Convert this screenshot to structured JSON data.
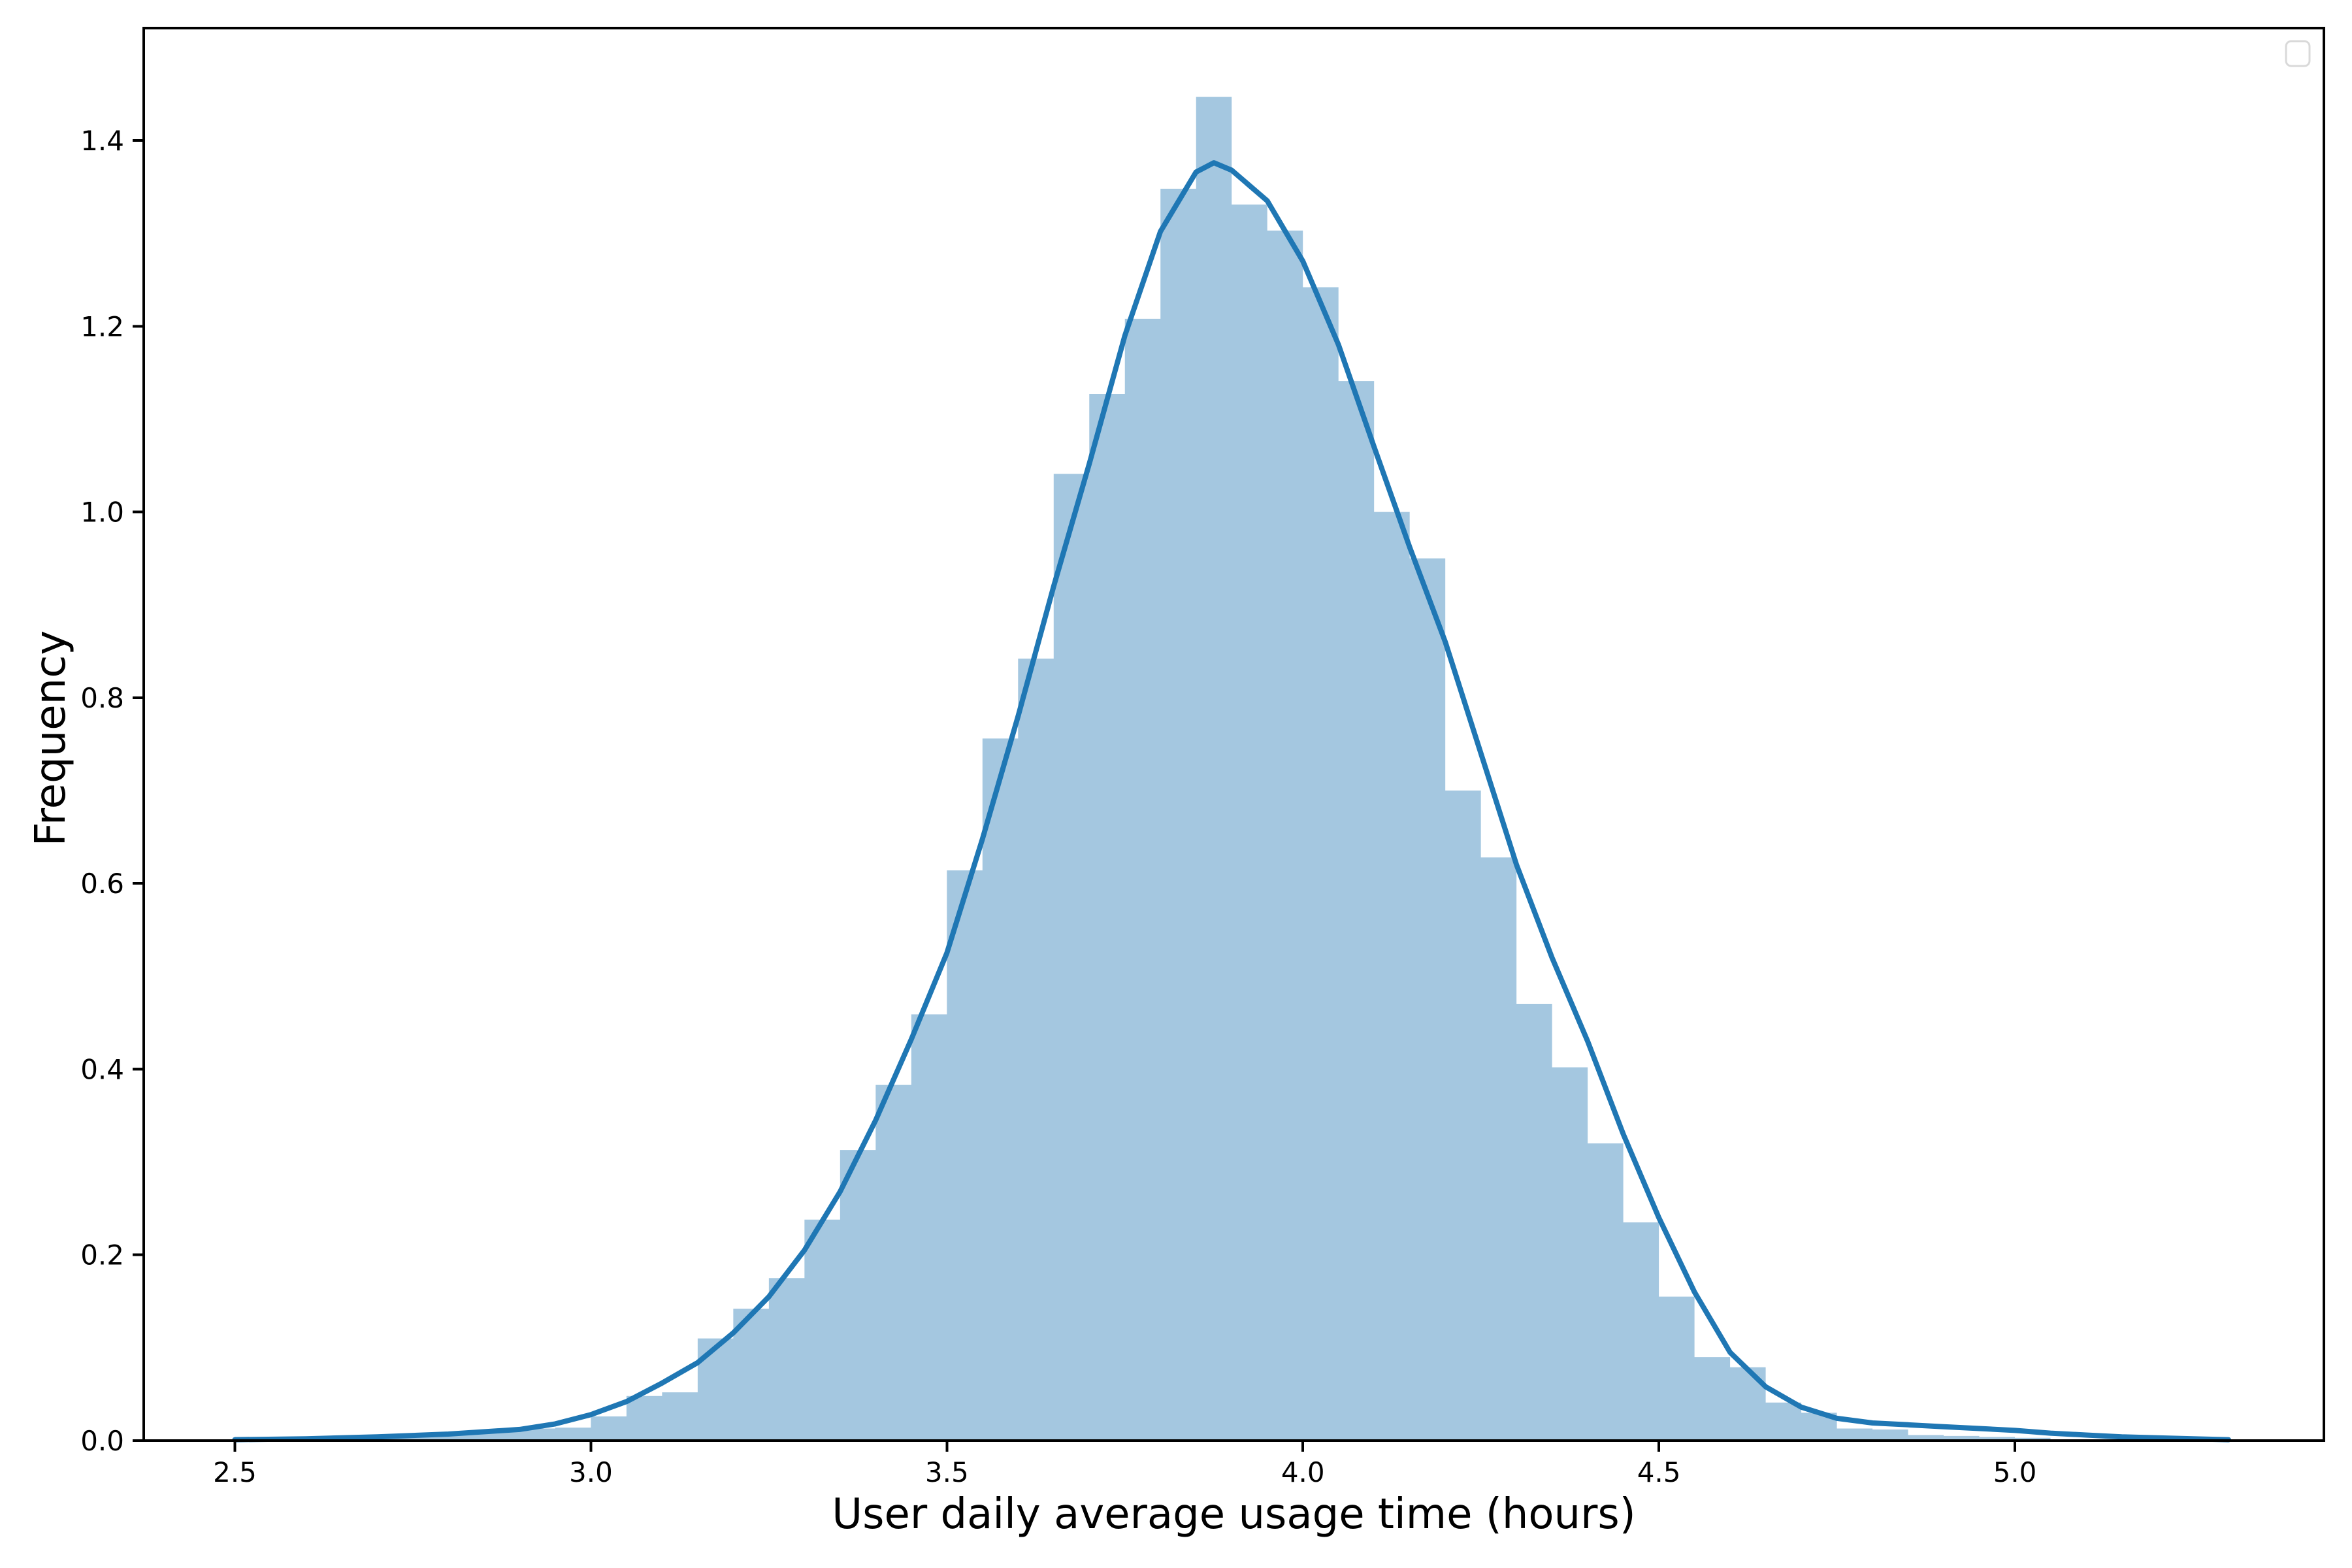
{
  "figure": {
    "background_color": "#ffffff",
    "text_color": "#000000"
  },
  "chart_data": {
    "type": "histogram",
    "subtype": "histogram_with_kde",
    "title": "",
    "xlabel": "User daily average usage time (hours)",
    "ylabel": "Frequency",
    "xlim": [
      2.372,
      5.434
    ],
    "ylim": [
      0,
      1.521
    ],
    "grid": false,
    "legend": {
      "visible": true,
      "position": "upper right",
      "entries": [],
      "border_color": "#d9d9d9",
      "fill_color": "#ffffff"
    },
    "xticks": {
      "values": [
        2.5,
        3.0,
        3.5,
        4.0,
        4.5,
        5.0
      ],
      "labels": [
        "2.5",
        "3.0",
        "3.5",
        "4.0",
        "4.5",
        "5.0"
      ]
    },
    "yticks": {
      "values": [
        0.0,
        0.2,
        0.4,
        0.6,
        0.8,
        1.0,
        1.2,
        1.4
      ],
      "labels": [
        "0.0",
        "0.2",
        "0.4",
        "0.6",
        "0.8",
        "1.0",
        "1.2",
        "1.4"
      ]
    },
    "histogram": {
      "fill_color": "#a4c7e0",
      "bin_start": 2.5,
      "bin_width": 0.05,
      "heights": [
        0.004,
        0.0,
        0.004,
        0.004,
        0.006,
        0.006,
        0.009,
        0.012,
        0.013,
        0.014,
        0.026,
        0.048,
        0.052,
        0.11,
        0.142,
        0.175,
        0.238,
        0.313,
        0.383,
        0.459,
        0.614,
        0.756,
        0.842,
        1.041,
        1.127,
        1.208,
        1.348,
        1.447,
        1.331,
        1.303,
        1.242,
        1.141,
        1.0,
        0.95,
        0.7,
        0.628,
        0.47,
        0.402,
        0.32,
        0.235,
        0.155,
        0.09,
        0.079,
        0.041,
        0.03,
        0.013,
        0.012,
        0.006,
        0.005,
        0.004,
        0.003
      ]
    },
    "kde": {
      "color": "#1f77b4",
      "line_width": 8,
      "peak": {
        "x": 3.875,
        "y": 1.376
      },
      "points": [
        [
          2.5,
          0.001
        ],
        [
          2.6,
          0.002
        ],
        [
          2.7,
          0.004
        ],
        [
          2.8,
          0.007
        ],
        [
          2.9,
          0.012
        ],
        [
          2.95,
          0.018
        ],
        [
          3.0,
          0.028
        ],
        [
          3.05,
          0.042
        ],
        [
          3.1,
          0.062
        ],
        [
          3.15,
          0.084
        ],
        [
          3.2,
          0.116
        ],
        [
          3.25,
          0.155
        ],
        [
          3.3,
          0.205
        ],
        [
          3.35,
          0.268
        ],
        [
          3.4,
          0.345
        ],
        [
          3.45,
          0.432
        ],
        [
          3.5,
          0.525
        ],
        [
          3.55,
          0.648
        ],
        [
          3.6,
          0.78
        ],
        [
          3.65,
          0.92
        ],
        [
          3.7,
          1.052
        ],
        [
          3.75,
          1.19
        ],
        [
          3.8,
          1.302
        ],
        [
          3.85,
          1.366
        ],
        [
          3.875,
          1.376
        ],
        [
          3.9,
          1.368
        ],
        [
          3.95,
          1.335
        ],
        [
          4.0,
          1.27
        ],
        [
          4.05,
          1.18
        ],
        [
          4.1,
          1.07
        ],
        [
          4.15,
          0.962
        ],
        [
          4.2,
          0.86
        ],
        [
          4.25,
          0.74
        ],
        [
          4.3,
          0.62
        ],
        [
          4.35,
          0.52
        ],
        [
          4.4,
          0.43
        ],
        [
          4.45,
          0.33
        ],
        [
          4.5,
          0.24
        ],
        [
          4.55,
          0.16
        ],
        [
          4.6,
          0.095
        ],
        [
          4.65,
          0.058
        ],
        [
          4.7,
          0.036
        ],
        [
          4.75,
          0.024
        ],
        [
          4.8,
          0.019
        ],
        [
          4.85,
          0.017
        ],
        [
          4.9,
          0.015
        ],
        [
          4.95,
          0.013
        ],
        [
          5.0,
          0.011
        ],
        [
          5.05,
          0.008
        ],
        [
          5.1,
          0.006
        ],
        [
          5.15,
          0.004
        ],
        [
          5.2,
          0.003
        ],
        [
          5.25,
          0.002
        ],
        [
          5.3,
          0.001
        ]
      ]
    },
    "axes_style": {
      "spine_color": "#000000",
      "spine_width": 4,
      "tick_color": "#000000",
      "tick_length": 17,
      "tick_width": 4,
      "tick_label_size": 42,
      "axis_label_size": 64
    }
  }
}
